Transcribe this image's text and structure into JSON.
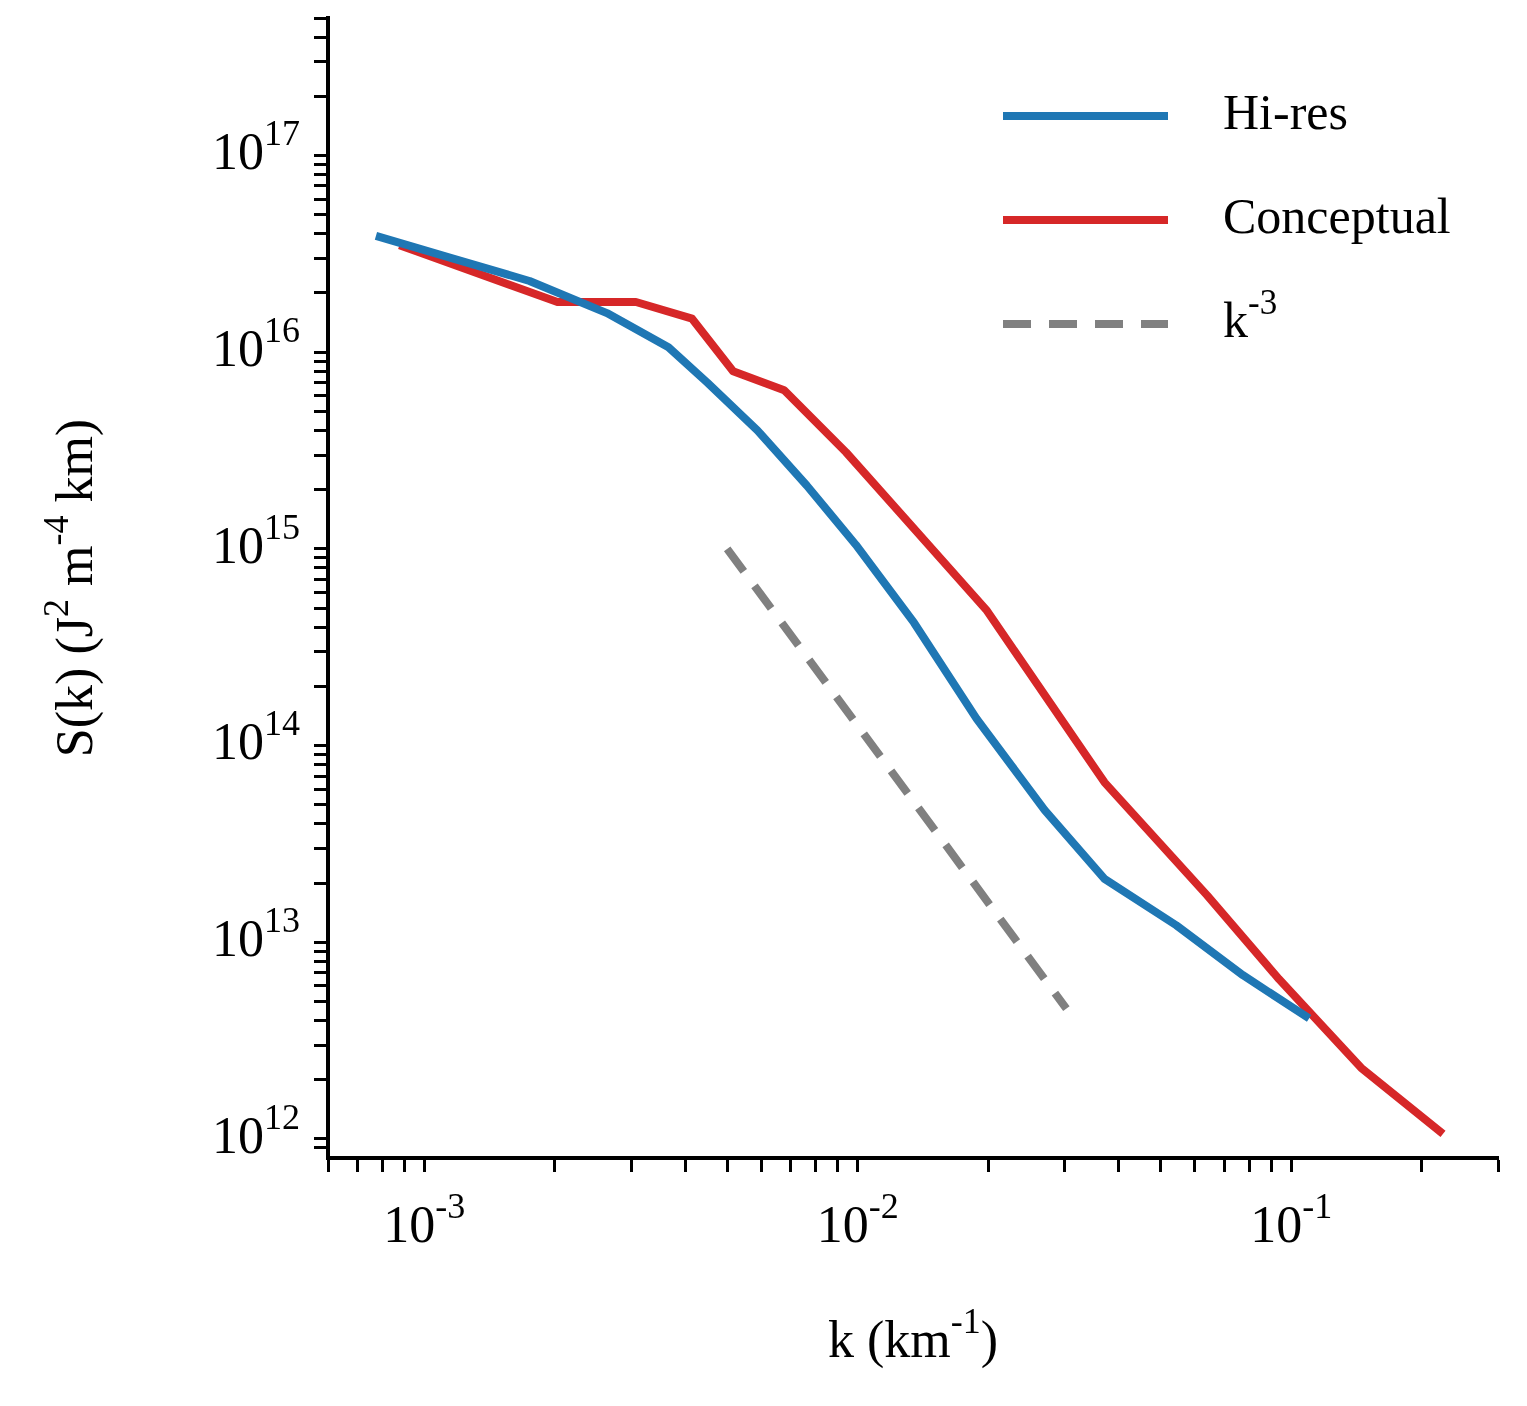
{
  "chart_data": {
    "type": "line",
    "xlabel": "k (km$^{-1}$)",
    "ylabel": "S(k) (J$^{2}$ m$^{-4}$ km)",
    "log": "xy",
    "grid": false,
    "legend": "top right",
    "marker": "none",
    "xlim": [
      0.0006,
      0.3
    ],
    "ylim": [
      800000000000.0,
      5e+17
    ],
    "xticks": [
      {
        "value": 0.0006,
        "label": null
      },
      {
        "value": 0.0007,
        "label": null
      },
      {
        "value": 0.0008,
        "label": null
      },
      {
        "value": 0.0009,
        "label": null
      },
      {
        "value": 0.001,
        "label": "10$^{-3}$"
      },
      {
        "value": 0.002,
        "label": null
      },
      {
        "value": 0.003,
        "label": null
      },
      {
        "value": 0.004,
        "label": null
      },
      {
        "value": 0.005,
        "label": null
      },
      {
        "value": 0.006,
        "label": null
      },
      {
        "value": 0.007,
        "label": null
      },
      {
        "value": 0.008,
        "label": null
      },
      {
        "value": 0.009,
        "label": null
      },
      {
        "value": 0.01,
        "label": "10$^{-2}$"
      },
      {
        "value": 0.02,
        "label": null
      },
      {
        "value": 0.03,
        "label": null
      },
      {
        "value": 0.04,
        "label": null
      },
      {
        "value": 0.05,
        "label": null
      },
      {
        "value": 0.06,
        "label": null
      },
      {
        "value": 0.07,
        "label": null
      },
      {
        "value": 0.08,
        "label": null
      },
      {
        "value": 0.09,
        "label": null
      },
      {
        "value": 0.1,
        "label": "10$^{-1}$"
      },
      {
        "value": 0.2,
        "label": null
      },
      {
        "value": 0.3,
        "label": null
      }
    ],
    "yticks": [
      {
        "value": 900000000000.0,
        "label": null
      },
      {
        "value": 1000000000000.0,
        "label": "10$^{12}$"
      },
      {
        "value": 2000000000000.0,
        "label": null
      },
      {
        "value": 3000000000000.0,
        "label": null
      },
      {
        "value": 4000000000000.0,
        "label": null
      },
      {
        "value": 5000000000000.0,
        "label": null
      },
      {
        "value": 6000000000000.0,
        "label": null
      },
      {
        "value": 7000000000000.0,
        "label": null
      },
      {
        "value": 8000000000000.0,
        "label": null
      },
      {
        "value": 9000000000000.0,
        "label": null
      },
      {
        "value": 10000000000000.0,
        "label": "10$^{13}$"
      },
      {
        "value": 20000000000000.0,
        "label": null
      },
      {
        "value": 30000000000000.0,
        "label": null
      },
      {
        "value": 40000000000000.0,
        "label": null
      },
      {
        "value": 50000000000000.0,
        "label": null
      },
      {
        "value": 60000000000000.0,
        "label": null
      },
      {
        "value": 70000000000000.0,
        "label": null
      },
      {
        "value": 80000000000000.0,
        "label": null
      },
      {
        "value": 90000000000000.0,
        "label": null
      },
      {
        "value": 100000000000000.0,
        "label": "10$^{14}$"
      },
      {
        "value": 200000000000000.0,
        "label": null
      },
      {
        "value": 300000000000000.0,
        "label": null
      },
      {
        "value": 400000000000000.0,
        "label": null
      },
      {
        "value": 500000000000000.0,
        "label": null
      },
      {
        "value": 600000000000000.0,
        "label": null
      },
      {
        "value": 700000000000000.0,
        "label": null
      },
      {
        "value": 800000000000000.0,
        "label": null
      },
      {
        "value": 900000000000000.0,
        "label": null
      },
      {
        "value": 1000000000000000.0,
        "label": "10$^{15}$"
      },
      {
        "value": 2000000000000000.0,
        "label": null
      },
      {
        "value": 3000000000000000.0,
        "label": null
      },
      {
        "value": 4000000000000000.0,
        "label": null
      },
      {
        "value": 5000000000000000.0,
        "label": null
      },
      {
        "value": 6000000000000000.0,
        "label": null
      },
      {
        "value": 7000000000000000.0,
        "label": null
      },
      {
        "value": 8000000000000000.0,
        "label": null
      },
      {
        "value": 9000000000000000.0,
        "label": null
      },
      {
        "value": 1e+16,
        "label": "10$^{16}$"
      },
      {
        "value": 2e+16,
        "label": null
      },
      {
        "value": 3e+16,
        "label": null
      },
      {
        "value": 4e+16,
        "label": null
      },
      {
        "value": 5e+16,
        "label": null
      },
      {
        "value": 6e+16,
        "label": null
      },
      {
        "value": 7e+16,
        "label": null
      },
      {
        "value": 8e+16,
        "label": null
      },
      {
        "value": 9e+16,
        "label": null
      },
      {
        "value": 1e+17,
        "label": "10$^{17}$"
      },
      {
        "value": 2e+17,
        "label": null
      },
      {
        "value": 3e+17,
        "label": null
      },
      {
        "value": 4e+17,
        "label": null
      },
      {
        "value": 5e+17,
        "label": null
      }
    ],
    "series": [
      {
        "name": "Hi-res",
        "color": "#1f77b4",
        "line_style": "solid",
        "x": [
          0.000774,
          0.00175,
          0.00264,
          0.00366,
          0.0045,
          0.00587,
          0.00763,
          0.0099,
          0.0135,
          0.0188,
          0.027,
          0.0371,
          0.0543,
          0.0774,
          0.11
        ],
        "values": [
          3.9e+16,
          2.3e+16,
          1.58e+16,
          1.06e+16,
          7000000000000000.0,
          4000000000000000.0,
          2100000000000000.0,
          1050000000000000.0,
          420000000000000.0,
          137000000000000.0,
          47000000000000.0,
          21000000000000.0,
          12200000000000.0,
          6800000000000.0,
          4100000000000.0
        ]
      },
      {
        "name": "Conceptual",
        "color": "#d62728",
        "line_style": "solid",
        "x": [
          0.000877,
          0.00203,
          0.00308,
          0.00415,
          0.00516,
          0.00677,
          0.0094,
          0.0198,
          0.0371,
          0.064,
          0.0937,
          0.145,
          0.224
        ],
        "values": [
          3.5e+16,
          1.8e+16,
          1.8e+16,
          1.48e+16,
          8000000000000000.0,
          6400000000000000.0,
          3100000000000000.0,
          490000000000000.0,
          65000000000000.0,
          17300000000000.0,
          6500000000000.0,
          2300000000000.0,
          1060000000000.0
        ]
      },
      {
        "name": "k$^{-3}$",
        "color": "#808080",
        "line_style": "dashed",
        "x": [
          0.005,
          0.0303
        ],
        "values": [
          1000000000000000.0,
          4600000000000.0
        ]
      }
    ]
  }
}
